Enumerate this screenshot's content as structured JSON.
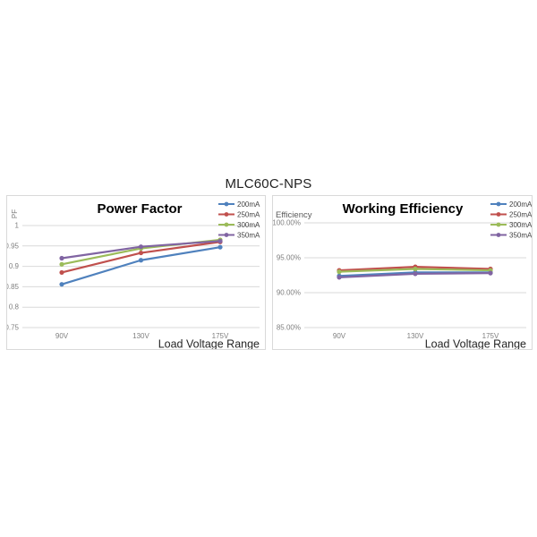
{
  "page": {
    "title": "MLC60C-NPS"
  },
  "colors": {
    "series_blue": "#4F81BD",
    "series_red": "#C0504D",
    "series_green": "#9BBB59",
    "series_purple": "#8064A2",
    "gridline": "#D9D9D9",
    "tick_text": "#7F7F7F",
    "axis_title_text": "#262626",
    "chart_title_text": "#000000",
    "legend_text": "#404040"
  },
  "chart_data": [
    {
      "type": "line",
      "title": "Power Factor",
      "y_axis_label": "PF",
      "x_axis_label": "Load Voltage Range",
      "categories": [
        "90V",
        "130V",
        "175V"
      ],
      "ylim": [
        0.75,
        1.0
      ],
      "grid": true,
      "legend_position": "top-right",
      "yticks": [
        {
          "v": 1.0,
          "label": "1"
        },
        {
          "v": 0.95,
          "label": "0.95"
        },
        {
          "v": 0.9,
          "label": "0.9"
        },
        {
          "v": 0.85,
          "label": "0.85"
        },
        {
          "v": 0.8,
          "label": "0.8"
        },
        {
          "v": 0.75,
          "label": "0.75"
        }
      ],
      "series": [
        {
          "name": "200mA",
          "color": "#4F81BD",
          "values": [
            0.856,
            0.915,
            0.947
          ]
        },
        {
          "name": "250mA",
          "color": "#C0504D",
          "values": [
            0.885,
            0.933,
            0.96
          ]
        },
        {
          "name": "300mA",
          "color": "#9BBB59",
          "values": [
            0.905,
            0.944,
            0.965
          ]
        },
        {
          "name": "350mA",
          "color": "#8064A2",
          "values": [
            0.92,
            0.948,
            0.962
          ]
        }
      ]
    },
    {
      "type": "line",
      "title": "Working Efficiency",
      "y_axis_label": "Efficiency",
      "x_axis_label": "Load Voltage Range",
      "categories": [
        "90V",
        "130V",
        "175V"
      ],
      "ylim": [
        85,
        100
      ],
      "grid": true,
      "legend_position": "top-right",
      "yticks": [
        {
          "v": 100,
          "label": "100.00%"
        },
        {
          "v": 95,
          "label": "95.00%"
        },
        {
          "v": 90,
          "label": "90.00%"
        },
        {
          "v": 85,
          "label": "85.00%"
        }
      ],
      "series": [
        {
          "name": "200mA",
          "color": "#4F81BD",
          "values": [
            92.4,
            92.9,
            92.9
          ]
        },
        {
          "name": "250mA",
          "color": "#C0504D",
          "values": [
            93.2,
            93.7,
            93.4
          ]
        },
        {
          "name": "300mA",
          "color": "#9BBB59",
          "values": [
            93.0,
            93.4,
            93.2
          ]
        },
        {
          "name": "350mA",
          "color": "#8064A2",
          "values": [
            92.2,
            92.7,
            92.8
          ]
        }
      ]
    }
  ]
}
